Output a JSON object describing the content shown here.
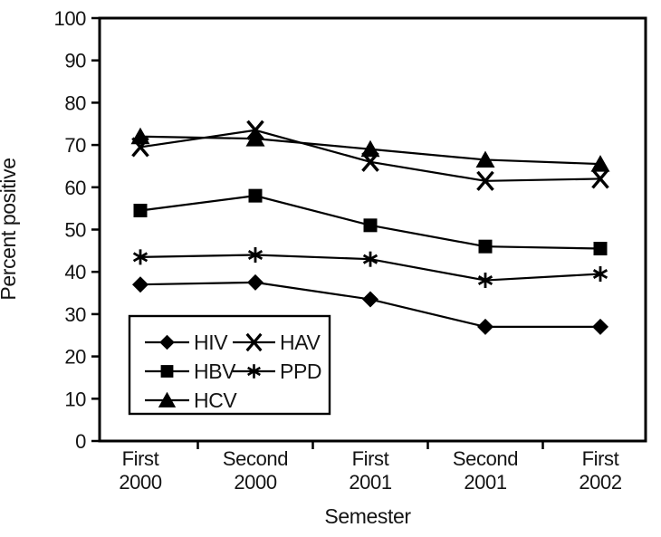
{
  "figure": {
    "background": "#ffffff",
    "ink_color": "#000000",
    "text_color": "#141414"
  },
  "chart_data": {
    "type": "line",
    "title": "",
    "xlabel": "Semester",
    "ylabel": "Percent positive",
    "ylim": [
      0,
      100
    ],
    "y_ticks": [
      0,
      10,
      20,
      30,
      40,
      50,
      60,
      70,
      80,
      90,
      100
    ],
    "grid": "off",
    "frame": "full-box",
    "categories": [
      "First\n2000",
      "Second\n2000",
      "First\n2001",
      "Second\n2001",
      "First\n2002"
    ],
    "series": [
      {
        "name": "HIV",
        "marker": "diamond",
        "values": [
          37,
          37.5,
          33.5,
          27,
          27
        ]
      },
      {
        "name": "HBV",
        "marker": "square",
        "values": [
          54.5,
          58,
          51,
          46,
          45.5
        ]
      },
      {
        "name": "HCV",
        "marker": "triangle",
        "values": [
          72,
          71.5,
          69,
          66.5,
          65.5
        ]
      },
      {
        "name": "HAV",
        "marker": "x",
        "values": [
          69.5,
          73.5,
          66,
          61.5,
          62
        ]
      },
      {
        "name": "PPD",
        "marker": "star",
        "values": [
          43.5,
          44,
          43,
          38,
          39.5
        ]
      }
    ],
    "legend": {
      "position": "inside-bottom-left",
      "columns": 2,
      "order": [
        "HIV",
        "HAV",
        "HBV",
        "PPD",
        "HCV"
      ]
    },
    "line_color": "#000000"
  }
}
